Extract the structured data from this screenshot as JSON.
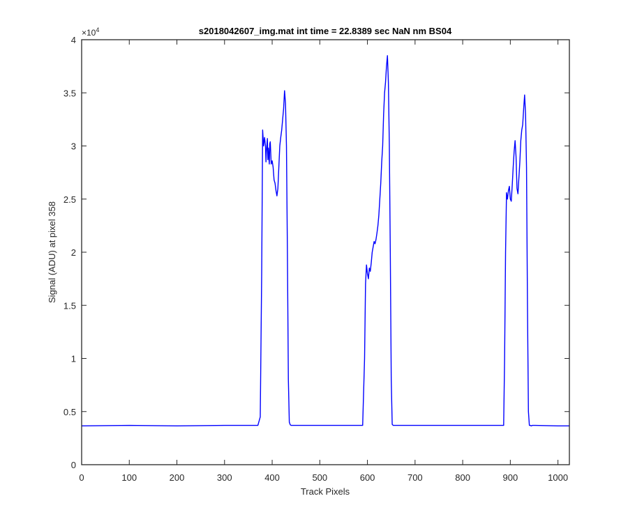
{
  "chart_data": {
    "type": "line",
    "title": "s2018042607_img.mat int time = 22.8389 sec  NaN nm BS04",
    "xlabel": "Track Pixels",
    "ylabel": "Signal (ADU) at pixel 358",
    "xlim": [
      0,
      1024
    ],
    "ylim": [
      0,
      40000
    ],
    "y_exponent": {
      "base": "×10",
      "power": "4"
    },
    "xticks": [
      0,
      100,
      200,
      300,
      400,
      500,
      600,
      700,
      800,
      900,
      1000
    ],
    "xtick_labels": [
      "0",
      "100",
      "200",
      "300",
      "400",
      "500",
      "600",
      "700",
      "800",
      "900",
      "1000"
    ],
    "yticks": [
      0,
      5000,
      10000,
      15000,
      20000,
      25000,
      30000,
      35000,
      40000
    ],
    "ytick_labels": [
      "0",
      "0.5",
      "1",
      "1.5",
      "2",
      "2.5",
      "3",
      "3.5",
      "4"
    ],
    "grid": false,
    "line_color": "#0000ff",
    "axis_color": "#262626",
    "series": [
      {
        "x": [
          0,
          100,
          200,
          300,
          370,
          375,
          378,
          380,
          382,
          384,
          386,
          387,
          388,
          390,
          391,
          392,
          394,
          395,
          396,
          398,
          400,
          402,
          404,
          406,
          408,
          410,
          412,
          414,
          416,
          418,
          420,
          422,
          424,
          426,
          428,
          430,
          432,
          434,
          436,
          438,
          440,
          442,
          444,
          500,
          590,
          594,
          596,
          598,
          600,
          602,
          604,
          606,
          608,
          610,
          612,
          614,
          616,
          618,
          620,
          622,
          624,
          626,
          628,
          630,
          632,
          634,
          636,
          638,
          640,
          642,
          644,
          646,
          648,
          650,
          652,
          654,
          656,
          658,
          660,
          700,
          800,
          886,
          888,
          890,
          892,
          894,
          896,
          898,
          900,
          902,
          904,
          906,
          908,
          910,
          912,
          914,
          916,
          918,
          920,
          922,
          924,
          926,
          928,
          930,
          932,
          934,
          936,
          938,
          940,
          942,
          944,
          946,
          948,
          950,
          952,
          1000,
          1024
        ],
        "y": [
          3650,
          3700,
          3650,
          3700,
          3700,
          4500,
          18000,
          31500,
          30000,
          30800,
          30000,
          28500,
          29500,
          30700,
          28700,
          29800,
          28300,
          30200,
          30400,
          28300,
          28600,
          28000,
          26800,
          26500,
          25800,
          25300,
          26000,
          28000,
          30000,
          30800,
          31500,
          32500,
          33500,
          35200,
          34000,
          30000,
          20000,
          8000,
          4000,
          3750,
          3700,
          3700,
          3700,
          3700,
          3700,
          10000,
          17000,
          18800,
          18000,
          17500,
          18500,
          18200,
          19000,
          20000,
          20500,
          21000,
          20800,
          21200,
          21800,
          22500,
          23500,
          25000,
          26500,
          28500,
          30000,
          33000,
          35000,
          36000,
          37500,
          38500,
          36000,
          30000,
          20000,
          8000,
          3800,
          3700,
          3700,
          3700,
          3700,
          3700,
          3700,
          3700,
          10000,
          20000,
          25600,
          25000,
          25800,
          26200,
          25000,
          24800,
          26300,
          28000,
          29500,
          30500,
          29000,
          26000,
          25500,
          27000,
          28500,
          30500,
          31500,
          32000,
          33500,
          34800,
          33000,
          28000,
          15000,
          5000,
          3700,
          3700,
          3650,
          3700,
          3700,
          3700,
          3700,
          3650,
          3650
        ]
      }
    ]
  }
}
